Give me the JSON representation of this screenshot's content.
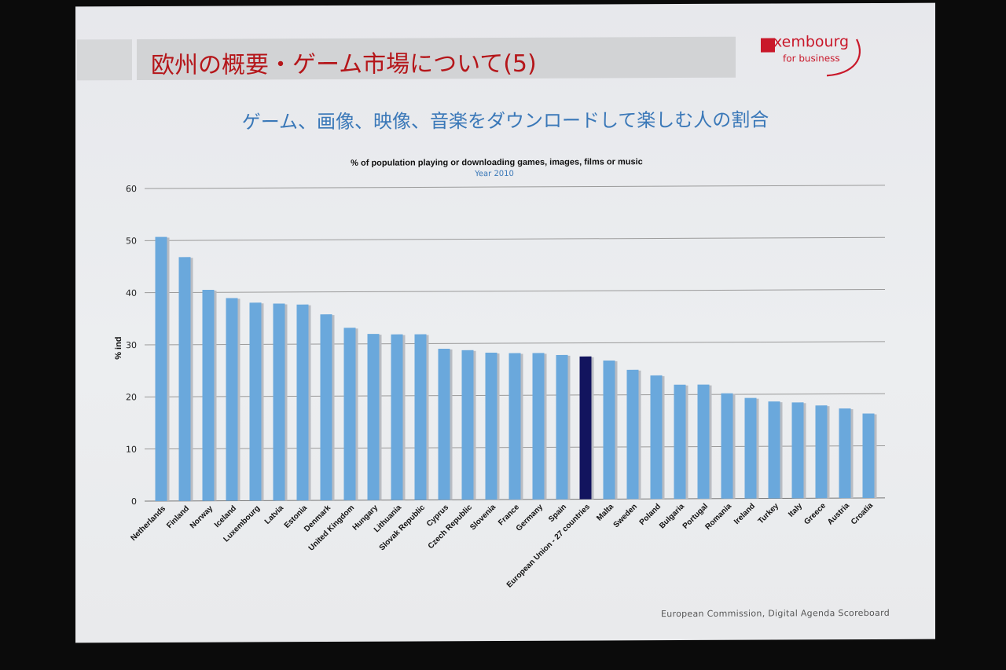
{
  "slide": {
    "title": "欧州の概要・ゲーム市場について(5)",
    "subtitle": "ゲーム、画像、映像、音楽をダウンロードして楽しむ人の割合",
    "logo": {
      "text": "xembourg",
      "sub": "for business"
    },
    "source": "European Commission, Digital Agenda Scoreboard"
  },
  "colors": {
    "bar": "#6aa8dc",
    "highlight": "#12145e",
    "grid": "#9a9a9a",
    "title": "#b5161a",
    "subtitle": "#3a78b8"
  },
  "chart_data": {
    "type": "bar",
    "title": "% of population playing or downloading games, images, films or music",
    "subtitle": "Year 2010",
    "ylabel": "% ind",
    "xlabel": "",
    "ylim": [
      0,
      60
    ],
    "yticks": [
      0,
      10,
      20,
      30,
      40,
      50,
      60
    ],
    "grid": true,
    "highlight_category": "European Union - 27 countries",
    "categories": [
      "Netherlands",
      "Finland",
      "Norway",
      "Iceland",
      "Luxembourg",
      "Latvia",
      "Estonia",
      "Denmark",
      "United Kingdom",
      "Hungary",
      "Lithuania",
      "Slovak Republic",
      "Cyprus",
      "Czech Republic",
      "Slovenia",
      "France",
      "Germany",
      "Spain",
      "European Union - 27 countries",
      "Malta",
      "Sweden",
      "Poland",
      "Bulgaria",
      "Portugal",
      "Romania",
      "Ireland",
      "Turkey",
      "Italy",
      "Greece",
      "Austria",
      "Croatia"
    ],
    "values": [
      50.7,
      46.8,
      40.5,
      38.9,
      38.0,
      37.8,
      37.6,
      35.7,
      33.1,
      31.9,
      31.8,
      31.8,
      29.0,
      28.7,
      28.2,
      28.1,
      28.1,
      27.7,
      27.4,
      26.6,
      24.8,
      23.7,
      21.9,
      21.9,
      20.2,
      19.3,
      18.6,
      18.4,
      17.8,
      17.2,
      16.2
    ]
  }
}
